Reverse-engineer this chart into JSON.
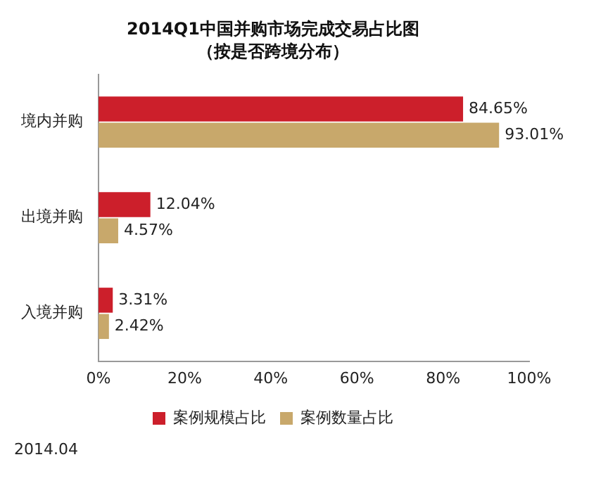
{
  "chart_data": {
    "type": "bar",
    "orientation": "horizontal",
    "title": "2014Q1中国并购市场完成交易占比图",
    "subtitle": "（按是否跨境分布）",
    "categories": [
      "境内并购",
      "出境并购",
      "入境并购"
    ],
    "series": [
      {
        "name": "案例规模占比",
        "color": "#cc1f2b",
        "values": [
          84.65,
          12.04,
          3.31
        ],
        "value_labels": [
          "84.65%",
          "12.04%",
          "3.31%"
        ]
      },
      {
        "name": "案例数量占比",
        "color": "#c8a86b",
        "values": [
          93.01,
          4.57,
          2.42
        ],
        "value_labels": [
          "93.01%",
          "4.57%",
          "2.42%"
        ]
      }
    ],
    "xlim": [
      0,
      100
    ],
    "xticks": [
      {
        "value": 0,
        "label": "0%"
      },
      {
        "value": 20,
        "label": "20%"
      },
      {
        "value": 40,
        "label": "40%"
      },
      {
        "value": 60,
        "label": "60%"
      },
      {
        "value": 80,
        "label": "80%"
      },
      {
        "value": 100,
        "label": "100%"
      }
    ],
    "grid": false,
    "legend": "bottom",
    "annotations": [
      "2014.04"
    ]
  }
}
